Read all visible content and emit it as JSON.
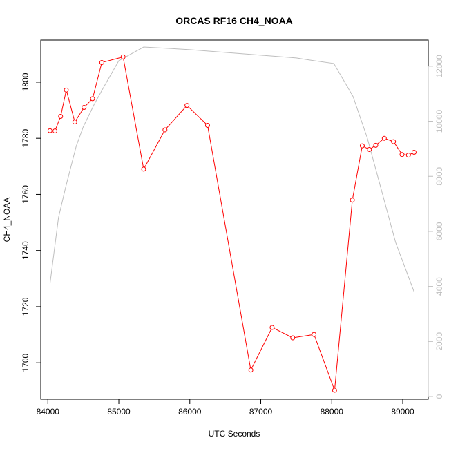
{
  "chart_data": {
    "type": "line",
    "title": "ORCAS RF16 CH4_NOAA",
    "xlabel": "UTC Seconds",
    "ylabel": "CH4_NOAA",
    "xlim": [
      83900,
      89360
    ],
    "ylim": [
      1687,
      1815
    ],
    "y2lim": [
      -100,
      12950
    ],
    "x_ticks": [
      84000,
      85000,
      86000,
      87000,
      88000,
      89000
    ],
    "y_ticks": [
      1700,
      1720,
      1740,
      1760,
      1780,
      1800
    ],
    "y2_ticks": [
      0,
      2000,
      4000,
      6000,
      8000,
      10000,
      12000
    ],
    "grid": false,
    "legend": "none",
    "colors": {
      "primary": "#ff0000",
      "secondary": "#bebebe",
      "axis": "#000000"
    },
    "series": [
      {
        "axis": "left",
        "style": "line-with-open-circles",
        "x": [
          84030,
          84100,
          84180,
          84260,
          84380,
          84510,
          84630,
          84760,
          85060,
          85350,
          85650,
          85960,
          86250,
          86860,
          87160,
          87450,
          87750,
          88040,
          88290,
          88430,
          88530,
          88620,
          88740,
          88870,
          88990,
          89080,
          89160
        ],
        "y": [
          1782.7,
          1782.6,
          1787.8,
          1797.2,
          1785.8,
          1791.0,
          1794.1,
          1807.0,
          1809.0,
          1769.0,
          1783.0,
          1791.7,
          1784.6,
          1697.4,
          1712.6,
          1708.9,
          1710.1,
          1690.2,
          1758.0,
          1777.3,
          1776.0,
          1777.5,
          1780.0,
          1778.8,
          1774.2,
          1774.0,
          1775.0
        ]
      },
      {
        "axis": "right",
        "style": "line",
        "x": [
          84030,
          84150,
          84250,
          84400,
          84500,
          84650,
          84800,
          85000,
          85350,
          85700,
          86000,
          86500,
          87000,
          87500,
          87750,
          88030,
          88300,
          88500,
          88700,
          88900,
          89160
        ],
        "y": [
          4100,
          6500,
          7600,
          9100,
          9800,
          10600,
          11300,
          12200,
          12700,
          12650,
          12600,
          12500,
          12400,
          12300,
          12200,
          12100,
          10900,
          9400,
          7500,
          5600,
          3800
        ]
      }
    ]
  }
}
